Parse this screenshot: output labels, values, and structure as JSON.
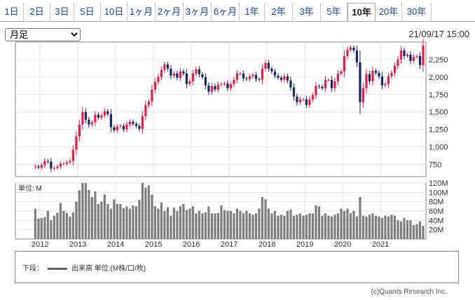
{
  "tabs": [
    "1日",
    "2日",
    "3日",
    "5日",
    "10日",
    "1ヶ月",
    "2ヶ月",
    "3ヶ月",
    "6ヶ月",
    "1年",
    "2年",
    "3年",
    "5年",
    "10年",
    "20年",
    "30年"
  ],
  "active_tab": "10年",
  "period_select": {
    "value": "月足",
    "options": [
      "月足"
    ]
  },
  "timestamp": "21/09/17 15:00",
  "legend": {
    "prefix": "下段：",
    "text": "出来高 単位:(M株/口/枚)"
  },
  "copyright": "(c)Quants Research Inc.",
  "colors": {
    "up": "#e8204a",
    "down": "#1a2a66",
    "volume": "#7f7f7f"
  },
  "chart_data": [
    {
      "type": "candlestick",
      "interval": "monthly",
      "yticks": [
        750,
        1000,
        1250,
        1500,
        1750,
        2000,
        2250
      ],
      "ylim": [
        575,
        2500
      ],
      "xticks": [
        "2012",
        "2013",
        "2014",
        "2015",
        "2016",
        "2017",
        "2018",
        "2019",
        "2020",
        "2021"
      ],
      "xlim": [
        2011.35,
        2022.2
      ],
      "grid": true,
      "start": "2011-11",
      "close": [
        720,
        705,
        740,
        800,
        790,
        690,
        700,
        720,
        760,
        760,
        780,
        800,
        960,
        1150,
        1320,
        1500,
        1390,
        1320,
        1350,
        1460,
        1420,
        1450,
        1510,
        1470,
        1280,
        1240,
        1290,
        1300,
        1250,
        1320,
        1360,
        1330,
        1300,
        1260,
        1440,
        1600,
        1650,
        1820,
        1930,
        2000,
        2100,
        2180,
        2120,
        2020,
        2050,
        1990,
        2080,
        2050,
        1900,
        1940,
        2050,
        2110,
        2040,
        2000,
        1880,
        1790,
        1870,
        1820,
        1890,
        1900,
        1910,
        1840,
        1900,
        1960,
        2050,
        2050,
        1980,
        1970,
        2010,
        2030,
        1970,
        1960,
        2120,
        2200,
        2120,
        2080,
        2020,
        1990,
        1960,
        2010,
        1950,
        1850,
        1720,
        1640,
        1680,
        1680,
        1600,
        1680,
        1740,
        1870,
        1860,
        1840,
        1960,
        1960,
        1840,
        1940,
        2050,
        2080,
        2300,
        2390,
        2420,
        2380,
        2210,
        1640,
        1840,
        2040,
        1940,
        2090,
        2060,
        2010,
        1880,
        1900,
        2010,
        2060,
        2160,
        2250,
        2380,
        2300,
        2320,
        2230,
        2290,
        2300,
        2170,
        2450
      ],
      "volume": [
        65,
        44,
        45,
        47,
        60,
        40,
        50,
        56,
        77,
        60,
        56,
        48,
        57,
        80,
        104,
        120,
        120,
        105,
        90,
        102,
        75,
        80,
        95,
        75,
        65,
        85,
        75,
        75,
        66,
        70,
        65,
        72,
        70,
        84,
        120,
        110,
        115,
        95,
        70,
        65,
        78,
        60,
        68,
        50,
        67,
        60,
        70,
        75,
        62,
        65,
        70,
        55,
        60,
        55,
        57,
        70,
        55,
        55,
        56,
        72,
        62,
        60,
        60,
        55,
        65,
        60,
        55,
        60,
        55,
        52,
        55,
        65,
        90,
        85,
        65,
        55,
        60,
        50,
        52,
        50,
        60,
        63,
        50,
        52,
        55,
        50,
        52,
        55,
        55,
        72,
        70,
        50,
        55,
        50,
        48,
        52,
        55,
        65,
        60,
        65,
        55,
        60,
        48,
        90,
        50,
        48,
        52,
        55,
        50,
        48,
        45,
        50,
        48,
        52,
        50,
        40,
        38,
        45,
        40,
        40,
        30,
        32,
        38,
        28
      ],
      "volume_yticks": [
        "20M",
        "40M",
        "60M",
        "80M",
        "100M",
        "120M"
      ],
      "volume_ylim": [
        0,
        120
      ],
      "volume_unit_label": "単位: M"
    }
  ]
}
